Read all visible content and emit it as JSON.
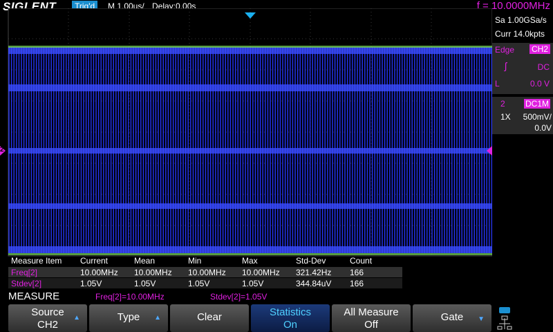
{
  "header": {
    "brand": "SIGLENT",
    "trigger_state": "Trig'd",
    "timebase": "M 1.00us/",
    "delay": "Delay:0.00s",
    "frequency": "f = 10.0000MHz"
  },
  "acquisition": {
    "sample_rate": "Sa 1.00GSa/s",
    "memory": "Curr 14.0kpts"
  },
  "trigger": {
    "type": "Edge",
    "source": "CH2",
    "coupling": "DC",
    "level_label": "L",
    "level": "0.0 V"
  },
  "channel": {
    "number": "2",
    "coupling": "DC1M",
    "probe": "1X",
    "scale": "500mV/",
    "offset": "0.0V"
  },
  "waveform": {
    "channel_marker": "2"
  },
  "measure_table": {
    "headers": [
      "Measure Item",
      "Current",
      "Mean",
      "Min",
      "Max",
      "Std-Dev",
      "Count"
    ],
    "rows": [
      [
        "Freq[2]",
        "10.00MHz",
        "10.00MHz",
        "10.00MHz",
        "10.00MHz",
        "321.42Hz",
        "166"
      ],
      [
        "Stdev[2]",
        "1.05V",
        "1.05V",
        "1.05V",
        "1.05V",
        "344.84uV",
        "166"
      ]
    ]
  },
  "status": {
    "menu": "MEASURE",
    "items": [
      "Freq[2]=10.00MHz",
      "Stdev[2]=1.05V"
    ]
  },
  "softkeys": [
    {
      "label": "Source",
      "value": "CH2"
    },
    {
      "label": "Type"
    },
    {
      "label": "Clear"
    },
    {
      "label": "Statistics",
      "value": "On"
    },
    {
      "label": "All Measure",
      "value": "Off"
    },
    {
      "label": "Gate"
    }
  ]
}
